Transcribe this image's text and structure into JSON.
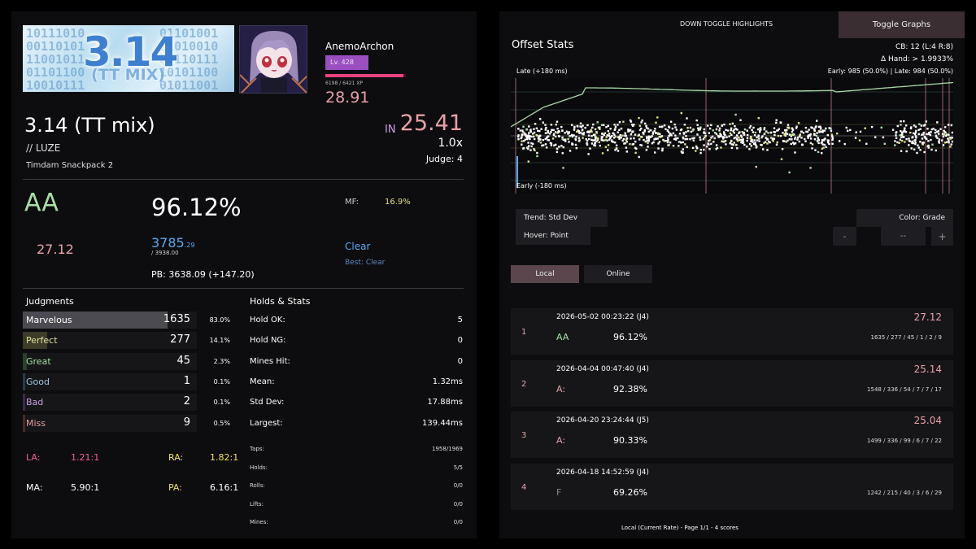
{
  "song": {
    "banner_title": "3.14",
    "banner_subtitle": "(TT MIX)",
    "title": "3.14 (TT mix)",
    "artist": "// LUZE",
    "pack": "Timdam Snackpack 2",
    "difficulty_label": "IN",
    "msd": "25.41",
    "rate": "1.0x",
    "judge": "Judge: 4"
  },
  "profile": {
    "name": "AnemoArchon",
    "level": "Lv. 428",
    "xp": "6198 / 6421 XP",
    "xp_progress": 0.965,
    "rating": "28.91"
  },
  "score": {
    "grade": "AA",
    "percent": "96.12%",
    "ssr": "27.12",
    "dp": "3785",
    "dp_decimal": ".29",
    "dp_max": "/ 3938.00",
    "pb": "PB: 3638.09 (+147.20)",
    "mf_label": "MF:",
    "mf_value": "16.9%",
    "clear": "Clear",
    "best_clear": "Best: Clear"
  },
  "judgments": {
    "header": "Judgments",
    "rows": [
      {
        "label": "Marvelous",
        "count": "1635",
        "pct": "83.0%",
        "fraction": 0.83,
        "color": "#ffffff",
        "bar": "#4a4a50"
      },
      {
        "label": "Perfect",
        "count": "277",
        "pct": "14.1%",
        "fraction": 0.141,
        "color": "#e0e0a0",
        "bar": "#3c3c28"
      },
      {
        "label": "Great",
        "count": "45",
        "pct": "2.3%",
        "fraction": 0.023,
        "color": "#a0e0a0",
        "bar": "#2a402a"
      },
      {
        "label": "Good",
        "count": "1",
        "pct": "0.1%",
        "fraction": 0.001,
        "color": "#a0c8e0",
        "bar": "#2a3a48"
      },
      {
        "label": "Bad",
        "count": "2",
        "pct": "0.1%",
        "fraction": 0.001,
        "color": "#c8a0e0",
        "bar": "#3a2a48"
      },
      {
        "label": "Miss",
        "count": "9",
        "pct": "0.5%",
        "fraction": 0.005,
        "color": "#e0a0a0",
        "bar": "#482a2a"
      }
    ],
    "ratios": [
      {
        "label": "LA:",
        "value": "1.21:1",
        "label_color": "#f06090",
        "value_color": "#f06090"
      },
      {
        "label": "RA:",
        "value": "1.82:1",
        "label_color": "#f0e060",
        "value_color": "#f0e060"
      },
      {
        "label": "MA:",
        "value": "5.90:1",
        "label_color": "#ffffff",
        "value_color": "#ffffff"
      },
      {
        "label": "PA:",
        "value": "6.16:1",
        "label_color": "#f0e060",
        "value_color": "#ffffff"
      }
    ]
  },
  "holds": {
    "header": "Holds & Stats",
    "rows": [
      {
        "label": "Hold OK:",
        "value": "5"
      },
      {
        "label": "Hold NG:",
        "value": "0"
      },
      {
        "label": "Mines Hit:",
        "value": "0"
      },
      {
        "label": "Mean:",
        "value": "1.32ms"
      },
      {
        "label": "Std Dev:",
        "value": "17.88ms"
      },
      {
        "label": "Largest:",
        "value": "139.44ms"
      }
    ],
    "small": [
      {
        "label": "Taps:",
        "value": "1958/1969"
      },
      {
        "label": "Holds:",
        "value": "5/5"
      },
      {
        "label": "Rolls:",
        "value": "0/0"
      },
      {
        "label": "Lifts:",
        "value": "0/0"
      },
      {
        "label": "Mines:",
        "value": "0/0"
      }
    ]
  },
  "right": {
    "down_toggle": "DOWN TOGGLE HIGHLIGHTS",
    "toggle_graphs": "Toggle Graphs",
    "offset_title": "Offset Stats",
    "cb": "CB: 12 (L:4  R:8)",
    "hand": "Δ  Hand: > 1.9933%",
    "early_late": "Early: 985 (50.0%) | Late: 984 (50.0%)",
    "late_label": "Late (+180 ms)",
    "early_label": "Early (-180 ms)",
    "trend": "Trend: Std Dev",
    "hover": "Hover: Point",
    "color": "Color: Grade",
    "minus": "-",
    "mid": "--",
    "plus": "+",
    "tab_local": "Local",
    "tab_online": "Online",
    "footer": "Local (Current Rate) - Page 1/1 - 4 scores"
  },
  "scores": [
    {
      "rank": "1",
      "date": "2026-05-02 00:23:22 (J4)",
      "grade": "AA",
      "grade_color": "#a8e0a8",
      "percent": "96.12%",
      "ssr": "27.12",
      "judgments": "1635 / 277 / 45 / 1 / 2 / 9"
    },
    {
      "rank": "2",
      "date": "2026-04-04 00:47:40 (J4)",
      "grade": "A:",
      "grade_color": "#e8a0a8",
      "percent": "92.38%",
      "ssr": "25.14",
      "judgments": "1548 / 336 / 54 / 7 / 7 / 17"
    },
    {
      "rank": "3",
      "date": "2026-04-20 23:24:44 (J5)",
      "grade": "A:",
      "grade_color": "#e8a0a8",
      "percent": "90.33%",
      "ssr": "25.04",
      "judgments": "1499 / 336 / 99 / 6 / 7 / 22"
    },
    {
      "rank": "4",
      "date": "2026-04-18 14:52:59 (J4)",
      "grade": "F",
      "grade_color": "#888888",
      "percent": "69.26%",
      "ssr": "",
      "judgments": "1242 / 215 / 40 / 3 / 6 / 29"
    }
  ],
  "colors": {
    "accent_pink": "#e8a0a8",
    "accent_blue": "#5aa8f0",
    "grade_aa": "#a8e0a8",
    "mf_yellow": "#e0e080"
  }
}
